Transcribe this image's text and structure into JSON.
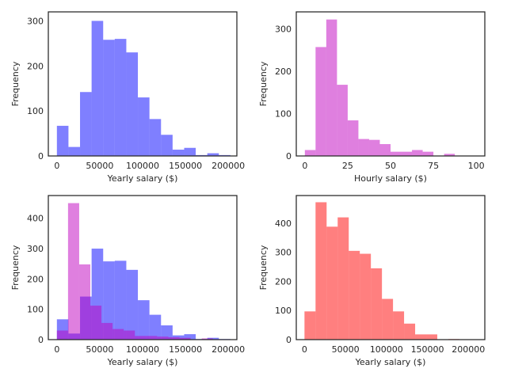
{
  "chart_data": [
    {
      "type": "bar",
      "title": "",
      "xlabel": "Yearly salary ($)",
      "ylabel": "Frequency",
      "xlim": [
        -10000,
        210000
      ],
      "ylim": [
        0,
        320
      ],
      "xticks": [
        0,
        50000,
        100000,
        150000,
        200000
      ],
      "xtick_labels": [
        "0",
        "50000",
        "100000",
        "150000",
        "200000"
      ],
      "yticks": [
        0,
        100,
        200,
        300
      ],
      "ytick_labels": [
        "0",
        "100",
        "200",
        "300"
      ],
      "grid": false,
      "legend": "none",
      "bin_edges": [
        0,
        13500,
        27000,
        40500,
        54000,
        67500,
        81000,
        94500,
        108000,
        121500,
        135000,
        148500,
        162000,
        175500,
        189000,
        202500
      ],
      "series": [
        {
          "color": "#0000ff",
          "opacity": 0.5,
          "values": [
            67,
            20,
            142,
            300,
            258,
            260,
            230,
            130,
            82,
            47,
            14,
            18,
            2,
            6,
            2
          ]
        }
      ]
    },
    {
      "type": "bar",
      "title": "",
      "xlabel": "Hourly salary ($)",
      "ylabel": "Frequency",
      "xlim": [
        -5,
        105
      ],
      "ylim": [
        0,
        340
      ],
      "xticks": [
        0,
        25,
        50,
        75,
        100
      ],
      "xtick_labels": [
        "0",
        "25",
        "50",
        "75",
        "100"
      ],
      "yticks": [
        0,
        100,
        200,
        300
      ],
      "ytick_labels": [
        "0",
        "100",
        "200",
        "300"
      ],
      "grid": false,
      "legend": "none",
      "bin_edges": [
        0,
        6.25,
        12.5,
        18.75,
        25,
        31.25,
        37.5,
        43.75,
        50,
        56.25,
        62.5,
        68.75,
        75,
        81.25,
        87.5,
        93.75
      ],
      "series": [
        {
          "color": "#c000c0",
          "opacity": 0.5,
          "values": [
            14,
            257,
            322,
            168,
            84,
            40,
            38,
            28,
            10,
            10,
            14,
            10,
            0,
            5,
            0
          ]
        }
      ]
    },
    {
      "type": "bar",
      "title": "",
      "xlabel": "Yearly salary ($)",
      "ylabel": "Frequency",
      "xlim": [
        -10000,
        210000
      ],
      "ylim": [
        0,
        475
      ],
      "xticks": [
        0,
        50000,
        100000,
        150000,
        200000
      ],
      "xtick_labels": [
        "0",
        "50000",
        "100000",
        "150000",
        "200000"
      ],
      "yticks": [
        0,
        100,
        200,
        300,
        400
      ],
      "ytick_labels": [
        "0",
        "100",
        "200",
        "300",
        "400"
      ],
      "grid": false,
      "legend": "none",
      "overlay": true,
      "series": [
        {
          "color": "#0000ff",
          "opacity": 0.5,
          "bin_edges": [
            0,
            13500,
            27000,
            40500,
            54000,
            67500,
            81000,
            94500,
            108000,
            121500,
            135000,
            148500,
            162000,
            175500,
            189000,
            202500
          ],
          "values": [
            67,
            20,
            142,
            300,
            258,
            260,
            230,
            130,
            82,
            47,
            14,
            18,
            2,
            6,
            2
          ]
        },
        {
          "color": "#c000c0",
          "opacity": 0.5,
          "bin_edges": [
            0,
            13000,
            26000,
            39000,
            52000,
            65000,
            78000,
            91000,
            104000,
            117000,
            130000,
            143000,
            156000,
            169000,
            182000,
            195000
          ],
          "values": [
            30,
            450,
            248,
            112,
            55,
            35,
            30,
            12,
            12,
            10,
            8,
            6,
            0,
            4,
            0
          ]
        }
      ]
    },
    {
      "type": "bar",
      "title": "",
      "xlabel": "Yearly salary ($)",
      "ylabel": "Frequency",
      "xlim": [
        -10000,
        220000
      ],
      "ylim": [
        0,
        495
      ],
      "xticks": [
        0,
        50000,
        100000,
        150000,
        200000
      ],
      "xtick_labels": [
        "0",
        "50000",
        "100000",
        "150000",
        "200000"
      ],
      "yticks": [
        0,
        100,
        200,
        300,
        400
      ],
      "ytick_labels": [
        "0",
        "100",
        "200",
        "300",
        "400"
      ],
      "grid": false,
      "legend": "none",
      "bin_edges": [
        0,
        13500,
        27000,
        40500,
        54000,
        67500,
        81000,
        94500,
        108000,
        121500,
        135000,
        148500,
        162000,
        175500,
        189000,
        202500
      ],
      "series": [
        {
          "color": "#ff0000",
          "opacity": 0.5,
          "values": [
            97,
            472,
            388,
            420,
            305,
            295,
            245,
            140,
            97,
            55,
            18,
            18,
            0,
            2,
            0
          ]
        }
      ]
    }
  ]
}
